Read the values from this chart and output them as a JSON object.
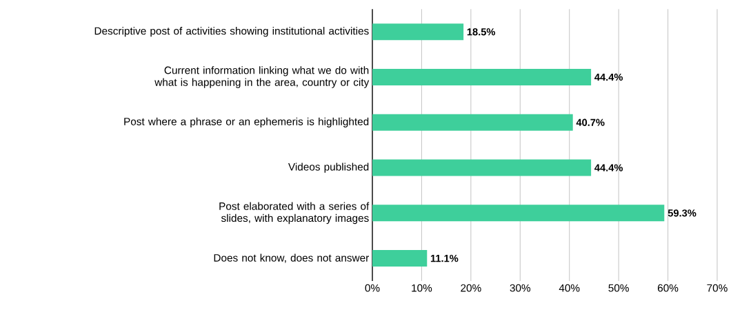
{
  "chart_data": {
    "type": "bar",
    "orientation": "horizontal",
    "categories": [
      "Descriptive post of activities showing institutional activities",
      "Current information linking what we do with what is happening in the area, country or city",
      "Post where a phrase or an ephemeris is highlighted",
      "Videos published",
      "Post elaborated with a series of slides, with explanatory images",
      "Does not know, does not answer"
    ],
    "values": [
      18.5,
      44.4,
      40.7,
      44.4,
      59.3,
      11.1
    ],
    "value_labels": [
      "18.5%",
      "44.4%",
      "40.7%",
      "44.4%",
      "59.3%",
      "11.1%"
    ],
    "color": "#3ecf9b",
    "xlim": [
      0,
      70
    ],
    "xticks": [
      {
        "value": 0,
        "label": "0%"
      },
      {
        "value": 10,
        "label": "10%"
      },
      {
        "value": 20,
        "label": "20%"
      },
      {
        "value": 30,
        "label": "30%"
      },
      {
        "value": 40,
        "label": "40%"
      },
      {
        "value": 50,
        "label": "50%"
      },
      {
        "value": 60,
        "label": "60%"
      },
      {
        "value": 70,
        "label": "70%"
      }
    ],
    "grid": "x"
  }
}
